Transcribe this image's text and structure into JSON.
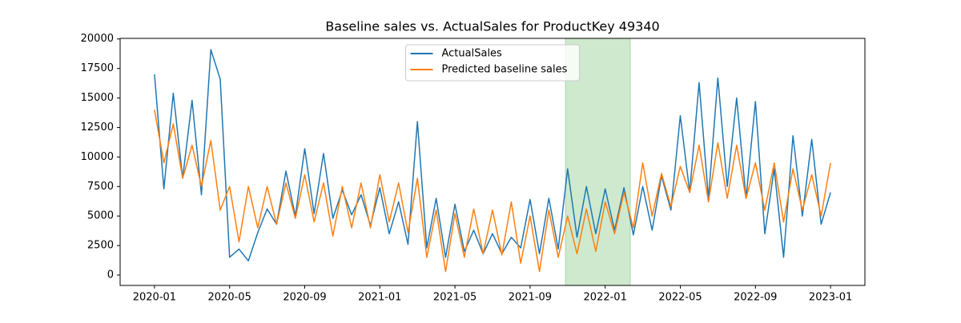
{
  "chart_data": {
    "type": "line",
    "title": "Baseline sales vs. ActualSales for ProductKey 49340",
    "x": [
      0,
      0.5,
      1,
      1.5,
      2,
      2.5,
      3,
      3.5,
      4,
      4.5,
      5,
      5.5,
      6,
      6.5,
      7,
      7.5,
      8,
      8.5,
      9,
      9.5,
      10,
      10.5,
      11,
      11.5,
      12,
      12.5,
      13,
      13.5,
      14,
      14.5,
      15,
      15.5,
      16,
      16.5,
      17,
      17.5,
      18,
      18.5,
      19,
      19.5,
      20,
      20.5,
      21,
      21.5,
      22,
      22.5,
      23,
      23.5,
      24,
      24.5,
      25,
      25.5,
      26,
      26.5,
      27,
      27.5,
      28,
      28.5,
      29,
      29.5,
      30,
      30.5,
      31,
      31.5,
      32,
      32.5,
      33,
      33.5,
      34,
      34.5,
      35,
      35.5,
      36
    ],
    "series": [
      {
        "name": "ActualSales",
        "color": "#1f77b4",
        "values": [
          17000,
          7300,
          15400,
          8200,
          14800,
          6800,
          19100,
          16600,
          1500,
          2200,
          1200,
          3600,
          5600,
          4300,
          8800,
          5000,
          10700,
          5200,
          10300,
          4800,
          7200,
          5100,
          6800,
          4200,
          7400,
          3500,
          6200,
          2600,
          13000,
          2300,
          6500,
          1500,
          6000,
          2000,
          3800,
          1800,
          3500,
          1800,
          3200,
          2300,
          6400,
          1800,
          6500,
          2200,
          9000,
          3200,
          7500,
          3500,
          7300,
          3800,
          7400,
          3400,
          7500,
          3800,
          8400,
          5500,
          13500,
          7000,
          16300,
          6500,
          16700,
          7500,
          15000,
          6500,
          14700,
          3500,
          9000,
          1500,
          11800,
          5000,
          11500,
          4300,
          7000
        ]
      },
      {
        "name": "Predicted baseline sales",
        "color": "#ff7f0e",
        "values": [
          14000,
          9500,
          12800,
          8200,
          11000,
          7500,
          11400,
          5500,
          7500,
          2800,
          7500,
          4000,
          7500,
          4300,
          7800,
          4800,
          8500,
          4500,
          7800,
          3300,
          7500,
          4000,
          7800,
          4000,
          8500,
          4500,
          7800,
          3600,
          8200,
          1500,
          5500,
          300,
          5200,
          1500,
          5600,
          1800,
          5500,
          1700,
          6200,
          1000,
          5000,
          300,
          5500,
          1500,
          5000,
          1800,
          5600,
          2000,
          6200,
          3500,
          7000,
          4000,
          9500,
          5000,
          8600,
          5800,
          9200,
          7000,
          11000,
          6200,
          11200,
          6500,
          11000,
          6500,
          9500,
          5500,
          9500,
          4500,
          9000,
          5500,
          8500,
          5000,
          9500
        ]
      }
    ],
    "xlim": [
      -1.83,
      37.83
    ],
    "xticks": [
      {
        "value": 0,
        "label": "2020-01"
      },
      {
        "value": 4,
        "label": "2020-05"
      },
      {
        "value": 8,
        "label": "2020-09"
      },
      {
        "value": 12,
        "label": "2021-01"
      },
      {
        "value": 16,
        "label": "2021-05"
      },
      {
        "value": 20,
        "label": "2021-09"
      },
      {
        "value": 24,
        "label": "2022-01"
      },
      {
        "value": 28,
        "label": "2022-05"
      },
      {
        "value": 32,
        "label": "2022-09"
      },
      {
        "value": 36,
        "label": "2023-01"
      }
    ],
    "ylim": [
      -880,
      20050
    ],
    "yticks": [
      0,
      2500,
      5000,
      7500,
      10000,
      12500,
      15000,
      17500,
      20000
    ],
    "span": [
      21.88,
      25.34
    ],
    "span_color": "#2ca02c",
    "legend": "upper center",
    "grid": false
  }
}
